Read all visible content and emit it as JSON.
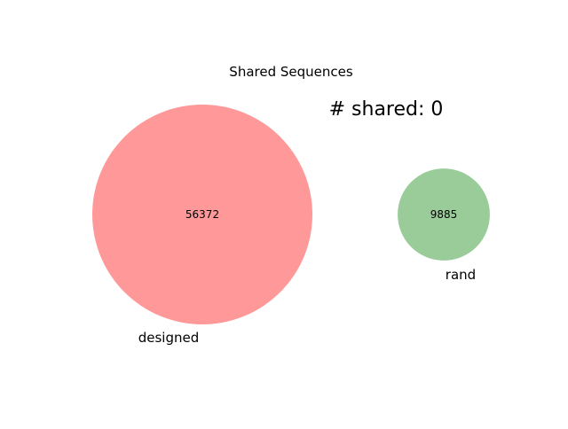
{
  "chart_data": {
    "type": "venn",
    "title": "Shared Sequences",
    "annotation": "# shared: 0",
    "sets": [
      {
        "name": "designed",
        "count": 56372,
        "color": "#ff9999"
      },
      {
        "name": "rand",
        "count": 9885,
        "color": "#99cc99"
      }
    ],
    "intersection": 0
  }
}
